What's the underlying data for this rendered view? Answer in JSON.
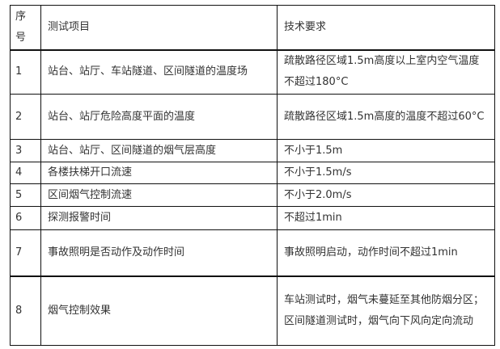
{
  "header": {
    "no": "序号",
    "item": "测试项目",
    "requirement": "技术要求"
  },
  "rows": [
    {
      "no": "1",
      "item": "站台、站厅、车站隧道、区间隧道的温度场",
      "requirement": "疏散路径区域1.5m高度以上室内空气温度不超过180°C"
    },
    {
      "no": "2",
      "item": "站台、站厅危险高度平面的温度",
      "requirement": "疏散路径区域1.5m高度的温度不超过60°C"
    },
    {
      "no": "3",
      "item": "站台、站厅、区间隧道的烟气层高度",
      "requirement": "不小于1.5m"
    },
    {
      "no": "4",
      "item": "各楼扶梯开口流速",
      "requirement": "不小于1.5m/s"
    },
    {
      "no": "5",
      "item": "区间烟气控制流速",
      "requirement": "不小于2.0m/s"
    },
    {
      "no": "6",
      "item": "探测报警时间",
      "requirement": "不超过1min"
    },
    {
      "no": "7",
      "item": "事故照明是否动作及动作时间",
      "requirement": "事故照明启动，动作时间不超过1min"
    },
    {
      "no": "8",
      "item": "烟气控制效果",
      "requirement": "车站测试时，烟气未蔓延至其他防烟分区；区间隧道测试时，烟气向下风向定向流动"
    }
  ]
}
